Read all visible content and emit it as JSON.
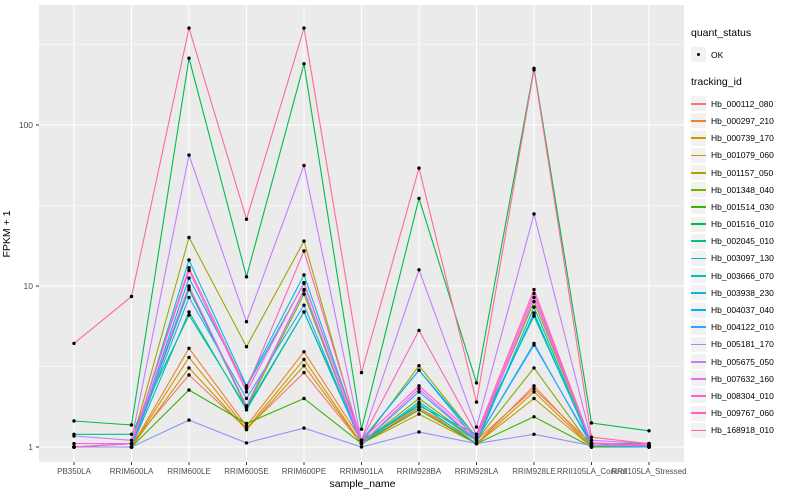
{
  "figure": {
    "xlabel": "sample_name",
    "ylabel": "FPKM + 1"
  },
  "legend": {
    "quant_status_title": "quant_status",
    "ok_label": "OK",
    "tracking_title": "tracking_id"
  },
  "colors": {
    "panel_background": "#EBEBEB",
    "gridline": "#FFFFFF",
    "tick_text": "#4D4D4D",
    "point": "#000000",
    "legend_key_background": "#F2F2F2"
  },
  "chart_data": {
    "type": "line",
    "title": "",
    "xlabel": "sample_name",
    "ylabel": "FPKM + 1",
    "yscale": "log10",
    "ylim": [
      1,
      550
    ],
    "y_ticks": [
      1,
      10,
      100
    ],
    "y_minor_ticks": [
      3.162,
      31.62,
      316.2
    ],
    "grid": true,
    "legend_position": "right",
    "point_legend": {
      "title": "quant_status",
      "items": [
        {
          "label": "OK",
          "shape": "point"
        }
      ]
    },
    "categories": [
      "PB350LA",
      "RRIM600LA",
      "RRIM600LE",
      "RRIM600SE",
      "RRIM600PE",
      "RRIM901LA",
      "RRIM928BA",
      "RRIM928LA",
      "RRIM928LE",
      "RRII105LA_Control",
      "RRII105LA_Stressed"
    ],
    "series": [
      {
        "name": "Hb_000112_080",
        "color": "#F8766D",
        "values": [
          1.0,
          1.05,
          2.8,
          1.3,
          2.9,
          1.05,
          1.75,
          1.05,
          2.4,
          1.0,
          1.0
        ]
      },
      {
        "name": "Hb_000297_210",
        "color": "#EA8331",
        "values": [
          1.0,
          1.0,
          4.1,
          1.35,
          3.9,
          1.1,
          1.75,
          1.1,
          2.3,
          1.05,
          1.0
        ]
      },
      {
        "name": "Hb_000739_170",
        "color": "#D89000",
        "values": [
          1.0,
          1.0,
          3.6,
          1.3,
          3.5,
          1.05,
          1.7,
          1.05,
          2.2,
          1.0,
          1.0
        ]
      },
      {
        "name": "Hb_001079_060",
        "color": "#C09B00",
        "values": [
          1.0,
          1.0,
          3.1,
          1.28,
          3.2,
          1.05,
          1.6,
          1.05,
          2.0,
          1.0,
          1.0
        ]
      },
      {
        "name": "Hb_001157_050",
        "color": "#A3A500",
        "values": [
          1.0,
          1.05,
          20.0,
          4.2,
          19.0,
          1.05,
          3.2,
          1.15,
          8.0,
          1.05,
          1.02
        ]
      },
      {
        "name": "Hb_001348_040",
        "color": "#7CAE00",
        "values": [
          1.0,
          1.0,
          9.8,
          1.75,
          8.9,
          1.05,
          2.0,
          1.1,
          3.1,
          1.0,
          1.0
        ]
      },
      {
        "name": "Hb_001514_030",
        "color": "#39B600",
        "values": [
          1.0,
          1.0,
          2.26,
          1.4,
          2.0,
          1.05,
          1.7,
          1.05,
          1.54,
          1.0,
          1.0
        ]
      },
      {
        "name": "Hb_001516_010",
        "color": "#00BB4E",
        "values": [
          1.45,
          1.37,
          260.0,
          11.4,
          240.0,
          1.29,
          35.0,
          2.5,
          225.0,
          1.41,
          1.26
        ]
      },
      {
        "name": "Hb_002045_010",
        "color": "#00C087",
        "values": [
          1.2,
          1.2,
          6.6,
          1.75,
          6.9,
          1.1,
          1.8,
          1.2,
          6.5,
          1.05,
          1.05
        ]
      },
      {
        "name": "Hb_003097_130",
        "color": "#00C0AF",
        "values": [
          1.0,
          1.0,
          6.9,
          1.7,
          6.9,
          1.05,
          1.85,
          1.05,
          7.4,
          1.02,
          1.02
        ]
      },
      {
        "name": "Hb_003666_070",
        "color": "#00BFC4",
        "values": [
          1.0,
          1.0,
          9.5,
          1.8,
          9.4,
          1.05,
          1.9,
          1.1,
          6.8,
          1.02,
          1.0
        ]
      },
      {
        "name": "Hb_003938_230",
        "color": "#00BAE0",
        "values": [
          1.0,
          1.0,
          14.5,
          2.4,
          11.7,
          1.1,
          3.0,
          1.15,
          6.6,
          1.05,
          1.02
        ]
      },
      {
        "name": "Hb_004037_040",
        "color": "#00B0F6",
        "values": [
          1.0,
          1.0,
          11.2,
          2.36,
          10.4,
          1.1,
          3.0,
          1.1,
          4.3,
          1.05,
          1.0
        ]
      },
      {
        "name": "Hb_004122_010",
        "color": "#35A2FF",
        "values": [
          1.0,
          1.0,
          8.5,
          2.0,
          7.6,
          1.05,
          2.2,
          1.1,
          4.4,
          1.02,
          1.0
        ]
      },
      {
        "name": "Hb_005181_170",
        "color": "#9590FF",
        "values": [
          1.0,
          1.0,
          1.47,
          1.06,
          1.31,
          1.0,
          1.24,
          1.05,
          1.2,
          1.02,
          1.02
        ]
      },
      {
        "name": "Hb_005675_050",
        "color": "#C77CFF",
        "values": [
          1.17,
          1.1,
          65.0,
          6.0,
          56.0,
          1.1,
          12.6,
          1.33,
          28.0,
          1.1,
          1.05
        ]
      },
      {
        "name": "Hb_007632_160",
        "color": "#E76BF3",
        "values": [
          1.05,
          1.05,
          10.0,
          1.8,
          9.5,
          1.05,
          2.3,
          1.1,
          8.5,
          1.05,
          1.02
        ]
      },
      {
        "name": "Hb_008304_010",
        "color": "#FA62DB",
        "values": [
          1.0,
          1.05,
          12.5,
          2.2,
          10.5,
          1.1,
          2.4,
          1.15,
          9.0,
          1.05,
          1.02
        ]
      },
      {
        "name": "Hb_009767_060",
        "color": "#FF62BC",
        "values": [
          1.0,
          1.05,
          13.0,
          2.3,
          16.5,
          1.1,
          5.3,
          1.2,
          9.5,
          1.06,
          1.03
        ]
      },
      {
        "name": "Hb_168918_010",
        "color": "#FF6A98",
        "values": [
          4.4,
          8.6,
          400.0,
          26.0,
          400.0,
          2.9,
          54.0,
          1.9,
          220.0,
          1.15,
          1.05
        ]
      }
    ]
  }
}
